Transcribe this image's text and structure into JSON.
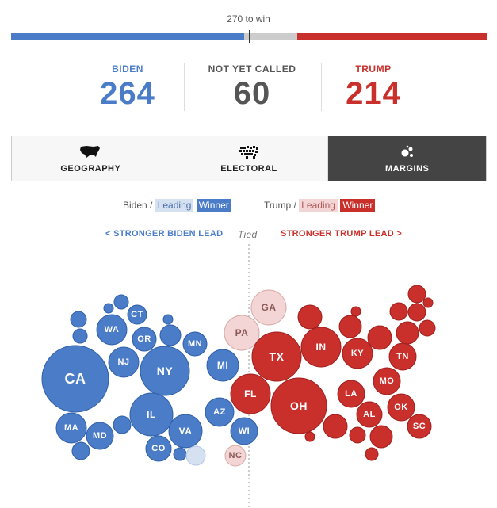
{
  "header": {
    "to_win": "270 to win"
  },
  "progress": {
    "biden": 264,
    "trump": 214,
    "total": 538
  },
  "tally": {
    "biden": {
      "label": "BIDEN",
      "count": "264",
      "color": "#4a7cc7"
    },
    "uncalled": {
      "label": "NOT YET CALLED",
      "count": "60",
      "color": "#555555"
    },
    "trump": {
      "label": "TRUMP",
      "count": "214",
      "color": "#c9302c"
    }
  },
  "tabs": [
    {
      "label": "GEOGRAPHY",
      "icon": "us-map-icon",
      "active": false
    },
    {
      "label": "ELECTORAL",
      "icon": "hex-map-icon",
      "active": false
    },
    {
      "label": "MARGINS",
      "icon": "bubbles-icon",
      "active": true
    }
  ],
  "legend": {
    "biden_prefix": "Biden /",
    "trump_prefix": "Trump /",
    "leading": "Leading",
    "winner": "Winner",
    "colors": {
      "biden_leading": "#d5e0f0",
      "biden_winner": "#4a7cc7",
      "trump_leading": "#f2d5d4",
      "trump_winner": "#c9302c"
    }
  },
  "axis": {
    "left": "< STRONGER BIDEN LEAD",
    "center": "Tied",
    "right": "STRONGER TRUMP LEAD >"
  },
  "bubbles": [
    {
      "label": "CA",
      "status": "biden_winner"
    },
    {
      "label": "NY",
      "status": "biden_winner"
    },
    {
      "label": "IL",
      "status": "biden_winner"
    },
    {
      "label": "WA",
      "status": "biden_winner"
    },
    {
      "label": "NJ",
      "status": "biden_winner"
    },
    {
      "label": "OR",
      "status": "biden_winner"
    },
    {
      "label": "CT",
      "status": "biden_winner"
    },
    {
      "label": "MN",
      "status": "biden_winner"
    },
    {
      "label": "MI",
      "status": "biden_winner"
    },
    {
      "label": "MA",
      "status": "biden_winner"
    },
    {
      "label": "MD",
      "status": "biden_winner"
    },
    {
      "label": "VA",
      "status": "biden_winner"
    },
    {
      "label": "CO",
      "status": "biden_winner"
    },
    {
      "label": "AZ",
      "status": "biden_winner"
    },
    {
      "label": "WI",
      "status": "biden_winner"
    },
    {
      "label": "",
      "status": "biden_winner"
    },
    {
      "label": "",
      "status": "biden_winner"
    },
    {
      "label": "",
      "status": "biden_winner"
    },
    {
      "label": "",
      "status": "biden_winner"
    },
    {
      "label": "",
      "status": "biden_winner"
    },
    {
      "label": "",
      "status": "biden_winner"
    },
    {
      "label": "",
      "status": "biden_winner"
    },
    {
      "label": "",
      "status": "biden_winner"
    },
    {
      "label": "",
      "status": "biden_winner"
    },
    {
      "label": "",
      "status": "biden_leading"
    },
    {
      "label": "NC",
      "status": "trump_leading"
    },
    {
      "label": "GA",
      "status": "trump_leading"
    },
    {
      "label": "PA",
      "status": "trump_leading"
    },
    {
      "label": "FL",
      "status": "trump_winner"
    },
    {
      "label": "TX",
      "status": "trump_winner"
    },
    {
      "label": "OH",
      "status": "trump_winner"
    },
    {
      "label": "IN",
      "status": "trump_winner"
    },
    {
      "label": "KY",
      "status": "trump_winner"
    },
    {
      "label": "TN",
      "status": "trump_winner"
    },
    {
      "label": "MO",
      "status": "trump_winner"
    },
    {
      "label": "LA",
      "status": "trump_winner"
    },
    {
      "label": "AL",
      "status": "trump_winner"
    },
    {
      "label": "OK",
      "status": "trump_winner"
    },
    {
      "label": "SC",
      "status": "trump_winner"
    },
    {
      "label": "",
      "status": "trump_winner"
    },
    {
      "label": "",
      "status": "trump_winner"
    },
    {
      "label": "",
      "status": "trump_winner"
    },
    {
      "label": "",
      "status": "trump_winner"
    },
    {
      "label": "",
      "status": "trump_winner"
    },
    {
      "label": "",
      "status": "trump_winner"
    },
    {
      "label": "",
      "status": "trump_winner"
    },
    {
      "label": "",
      "status": "trump_winner"
    },
    {
      "label": "",
      "status": "trump_winner"
    },
    {
      "label": "",
      "status": "trump_winner"
    },
    {
      "label": "",
      "status": "trump_winner"
    },
    {
      "label": "",
      "status": "trump_winner"
    },
    {
      "label": "",
      "status": "trump_winner"
    },
    {
      "label": "",
      "status": "trump_winner"
    },
    {
      "label": "",
      "status": "trump_winner"
    }
  ]
}
